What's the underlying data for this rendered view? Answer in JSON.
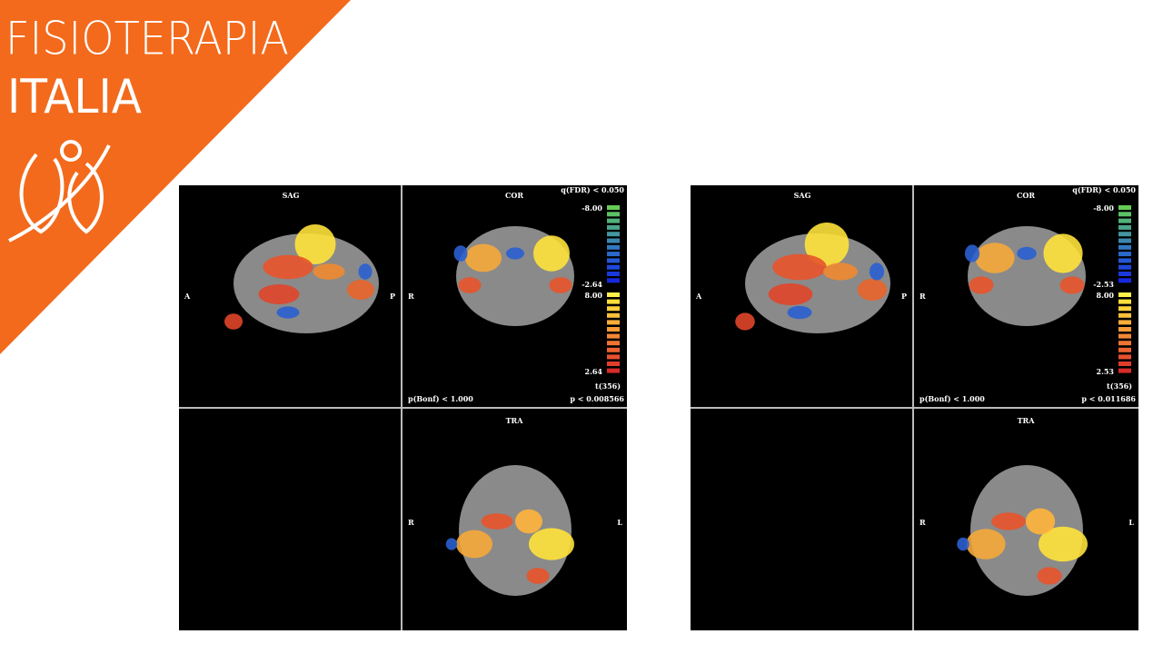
{
  "logo": {
    "line1": "FISIOTERAPIA",
    "line2": "ITALIA"
  },
  "panels": [
    {
      "sag": {
        "title": "SAG",
        "left": "A",
        "right": "P"
      },
      "cor": {
        "title": "COR",
        "left": "R",
        "threshold": "q(FDR) < 0.050",
        "neg_max": "-8.00",
        "neg_min": "-2.64",
        "pos_max": "8.00",
        "pos_min": "2.64",
        "stat": "t(356)",
        "bonf": "p(Bonf) < 1.000",
        "p": "p < 0.008566"
      },
      "tra": {
        "title": "TRA",
        "left": "R",
        "right": "L"
      }
    },
    {
      "sag": {
        "title": "SAG",
        "left": "A",
        "right": "P"
      },
      "cor": {
        "title": "COR",
        "left": "R",
        "threshold": "q(FDR) < 0.050",
        "neg_max": "-8.00",
        "neg_min": "-2.53",
        "pos_max": "8.00",
        "pos_min": "2.53",
        "stat": "t(356)",
        "bonf": "p(Bonf) < 1.000",
        "p": "p < 0.011686"
      },
      "tra": {
        "title": "TRA",
        "left": "R",
        "right": "L"
      }
    }
  ]
}
